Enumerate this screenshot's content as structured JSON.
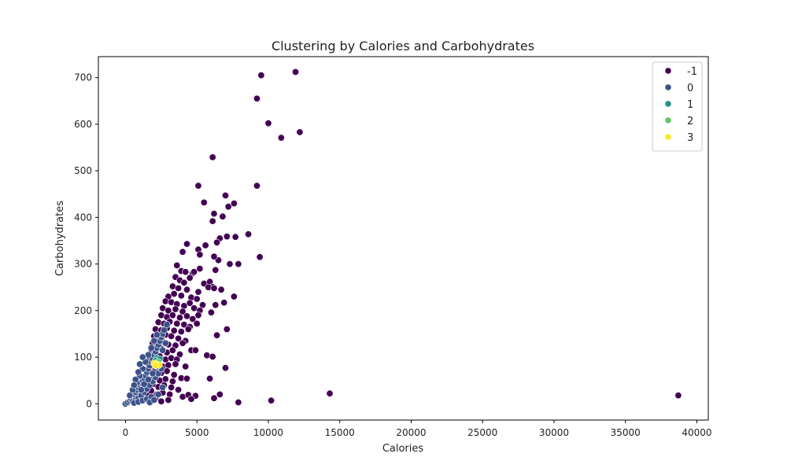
{
  "chart_data": {
    "type": "scatter",
    "title": "Clustering by Calories and Carbohydrates",
    "xlabel": "Calories",
    "ylabel": "Carbohydrates",
    "xlim": [
      -1900,
      40800
    ],
    "ylim": [
      -35,
      745
    ],
    "xticks": [
      0,
      5000,
      10000,
      15000,
      20000,
      25000,
      30000,
      35000,
      40000
    ],
    "yticks": [
      0,
      100,
      200,
      300,
      400,
      500,
      600,
      700
    ],
    "grid": false,
    "legend_position": "top-right",
    "series": [
      {
        "name": "-1",
        "color": "#440154",
        "points": [
          [
            9500,
            705
          ],
          [
            11900,
            712
          ],
          [
            9200,
            655
          ],
          [
            10000,
            602
          ],
          [
            10900,
            571
          ],
          [
            12200,
            583
          ],
          [
            6100,
            529
          ],
          [
            5100,
            468
          ],
          [
            9200,
            468
          ],
          [
            5500,
            432
          ],
          [
            7000,
            447
          ],
          [
            7200,
            423
          ],
          [
            7600,
            430
          ],
          [
            6200,
            408
          ],
          [
            6800,
            402
          ],
          [
            6100,
            392
          ],
          [
            8600,
            364
          ],
          [
            7100,
            359
          ],
          [
            7700,
            358
          ],
          [
            6600,
            355
          ],
          [
            6400,
            346
          ],
          [
            4300,
            343
          ],
          [
            5600,
            340
          ],
          [
            4000,
            326
          ],
          [
            5100,
            331
          ],
          [
            6500,
            308
          ],
          [
            5200,
            320
          ],
          [
            6200,
            316
          ],
          [
            9400,
            315
          ],
          [
            7300,
            300
          ],
          [
            7900,
            300
          ],
          [
            3600,
            297
          ],
          [
            4700,
            280
          ],
          [
            3900,
            285
          ],
          [
            4200,
            283
          ],
          [
            4800,
            283
          ],
          [
            5200,
            290
          ],
          [
            6300,
            287
          ],
          [
            3500,
            272
          ],
          [
            3800,
            265
          ],
          [
            4100,
            260
          ],
          [
            4500,
            270
          ],
          [
            5500,
            258
          ],
          [
            5900,
            262
          ],
          [
            6100,
            251
          ],
          [
            3300,
            252
          ],
          [
            3700,
            248
          ],
          [
            4300,
            245
          ],
          [
            5100,
            240
          ],
          [
            5800,
            250
          ],
          [
            6200,
            248
          ],
          [
            6700,
            245
          ],
          [
            3000,
            230
          ],
          [
            3400,
            236
          ],
          [
            3900,
            232
          ],
          [
            4600,
            228
          ],
          [
            5000,
            225
          ],
          [
            7600,
            230
          ],
          [
            2800,
            220
          ],
          [
            3200,
            218
          ],
          [
            3600,
            214
          ],
          [
            4100,
            210
          ],
          [
            4500,
            216
          ],
          [
            5400,
            212
          ],
          [
            6300,
            212
          ],
          [
            6900,
            217
          ],
          [
            2600,
            205
          ],
          [
            3000,
            200
          ],
          [
            3500,
            203
          ],
          [
            4000,
            198
          ],
          [
            4800,
            205
          ],
          [
            5200,
            200
          ],
          [
            6000,
            196
          ],
          [
            2500,
            190
          ],
          [
            2900,
            186
          ],
          [
            3300,
            190
          ],
          [
            3800,
            185
          ],
          [
            4300,
            188
          ],
          [
            4700,
            182
          ],
          [
            5100,
            190
          ],
          [
            2300,
            175
          ],
          [
            2700,
            172
          ],
          [
            3100,
            176
          ],
          [
            3600,
            172
          ],
          [
            4100,
            170
          ],
          [
            4500,
            165
          ],
          [
            5000,
            172
          ],
          [
            2100,
            160
          ],
          [
            2500,
            158
          ],
          [
            2900,
            162
          ],
          [
            3400,
            157
          ],
          [
            3900,
            155
          ],
          [
            4400,
            160
          ],
          [
            7100,
            160
          ],
          [
            2000,
            145
          ],
          [
            2400,
            142
          ],
          [
            2800,
            148
          ],
          [
            3200,
            145
          ],
          [
            3700,
            140
          ],
          [
            4200,
            135
          ],
          [
            6400,
            147
          ],
          [
            1900,
            130
          ],
          [
            2200,
            128
          ],
          [
            2600,
            133
          ],
          [
            3000,
            127
          ],
          [
            3500,
            125
          ],
          [
            4000,
            130
          ],
          [
            4600,
            115
          ],
          [
            1800,
            117
          ],
          [
            2100,
            112
          ],
          [
            2500,
            118
          ],
          [
            2900,
            110
          ],
          [
            3300,
            115
          ],
          [
            3800,
            106
          ],
          [
            4900,
            115
          ],
          [
            1700,
            100
          ],
          [
            2000,
            98
          ],
          [
            2400,
            102
          ],
          [
            2800,
            95
          ],
          [
            3200,
            98
          ],
          [
            3600,
            95
          ],
          [
            5700,
            104
          ],
          [
            6100,
            101
          ],
          [
            1600,
            85
          ],
          [
            1900,
            82
          ],
          [
            2200,
            88
          ],
          [
            2600,
            80
          ],
          [
            3000,
            83
          ],
          [
            3500,
            85
          ],
          [
            4200,
            80
          ],
          [
            7000,
            77
          ],
          [
            1500,
            70
          ],
          [
            1800,
            68
          ],
          [
            2100,
            72
          ],
          [
            2500,
            66
          ],
          [
            2900,
            70
          ],
          [
            3400,
            62
          ],
          [
            3900,
            55
          ],
          [
            1400,
            55
          ],
          [
            1700,
            52
          ],
          [
            2000,
            57
          ],
          [
            2400,
            50
          ],
          [
            2800,
            53
          ],
          [
            3300,
            48
          ],
          [
            4300,
            54
          ],
          [
            5900,
            54
          ],
          [
            1300,
            40
          ],
          [
            1600,
            38
          ],
          [
            1900,
            42
          ],
          [
            2300,
            36
          ],
          [
            2700,
            40
          ],
          [
            3200,
            35
          ],
          [
            3700,
            30
          ],
          [
            1200,
            25
          ],
          [
            1500,
            22
          ],
          [
            1800,
            28
          ],
          [
            2200,
            20
          ],
          [
            2600,
            24
          ],
          [
            3100,
            20
          ],
          [
            4000,
            15
          ],
          [
            4400,
            19
          ],
          [
            4900,
            17
          ],
          [
            6600,
            20
          ],
          [
            4600,
            10
          ],
          [
            6200,
            12
          ],
          [
            7900,
            3
          ],
          [
            10200,
            7
          ],
          [
            14300,
            22
          ],
          [
            38700,
            18
          ],
          [
            1300,
            10
          ],
          [
            1700,
            8
          ],
          [
            2100,
            12
          ],
          [
            2500,
            5
          ],
          [
            3000,
            8
          ]
        ]
      },
      {
        "name": "0",
        "color": "#3b528b",
        "points": [
          [
            0,
            0
          ],
          [
            150,
            3
          ],
          [
            300,
            6
          ],
          [
            400,
            10
          ],
          [
            500,
            15
          ],
          [
            600,
            20
          ],
          [
            700,
            25
          ],
          [
            800,
            30
          ],
          [
            900,
            35
          ],
          [
            1000,
            40
          ],
          [
            1100,
            45
          ],
          [
            1200,
            50
          ],
          [
            1300,
            55
          ],
          [
            1400,
            60
          ],
          [
            1500,
            68
          ],
          [
            1600,
            75
          ],
          [
            1700,
            82
          ],
          [
            1800,
            90
          ],
          [
            1900,
            97
          ],
          [
            2000,
            105
          ],
          [
            2100,
            112
          ],
          [
            2200,
            120
          ],
          [
            2300,
            127
          ],
          [
            2400,
            135
          ],
          [
            2500,
            143
          ],
          [
            2600,
            150
          ],
          [
            2700,
            158
          ],
          [
            2900,
            170
          ],
          [
            500,
            5
          ],
          [
            700,
            8
          ],
          [
            900,
            12
          ],
          [
            1100,
            18
          ],
          [
            1300,
            25
          ],
          [
            1500,
            32
          ],
          [
            1700,
            40
          ],
          [
            1900,
            48
          ],
          [
            2100,
            57
          ],
          [
            2300,
            65
          ],
          [
            2500,
            75
          ],
          [
            600,
            2
          ],
          [
            900,
            4
          ],
          [
            1200,
            7
          ],
          [
            1500,
            10
          ],
          [
            1800,
            15
          ],
          [
            800,
            45
          ],
          [
            1000,
            60
          ],
          [
            1200,
            75
          ],
          [
            1400,
            90
          ],
          [
            1600,
            105
          ],
          [
            1800,
            120
          ],
          [
            2000,
            135
          ],
          [
            2200,
            148
          ],
          [
            1100,
            30
          ],
          [
            1300,
            42
          ],
          [
            1600,
            52
          ],
          [
            1900,
            65
          ],
          [
            2200,
            80
          ],
          [
            2400,
            95
          ],
          [
            700,
            52
          ],
          [
            900,
            68
          ],
          [
            1000,
            85
          ],
          [
            1200,
            100
          ],
          [
            2600,
            115
          ],
          [
            2800,
            130
          ],
          [
            300,
            18
          ],
          [
            500,
            30
          ],
          [
            600,
            40
          ],
          [
            1700,
            3
          ],
          [
            2000,
            8
          ],
          [
            2300,
            20
          ],
          [
            2600,
            35
          ]
        ]
      },
      {
        "name": "1",
        "color": "#21918c",
        "points": [
          [
            2200,
            98
          ],
          [
            2400,
            96
          ],
          [
            2100,
            92
          ]
        ]
      },
      {
        "name": "2",
        "color": "#5ec962",
        "points": [
          [
            2300,
            90
          ]
        ]
      },
      {
        "name": "3",
        "color": "#fde725",
        "points": [
          [
            2000,
            87
          ],
          [
            2200,
            85
          ],
          [
            2350,
            83
          ],
          [
            2100,
            82
          ]
        ]
      }
    ]
  }
}
